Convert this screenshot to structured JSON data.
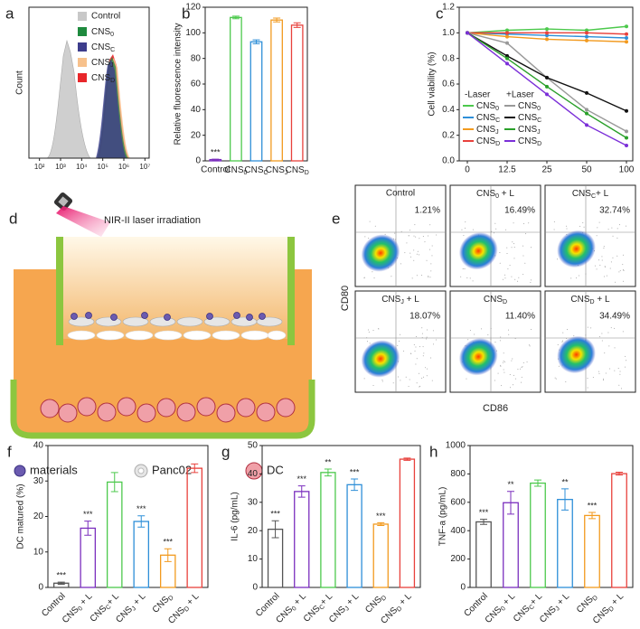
{
  "chart_data": [
    {
      "panel": "a",
      "type": "flow-histogram",
      "ylabel": "Count",
      "xlim": [
        1.5,
        7.2
      ],
      "xticks": [
        {
          "value": 2,
          "label": "10²"
        },
        {
          "value": 3,
          "label": "10³"
        },
        {
          "value": 4,
          "label": "10⁴"
        },
        {
          "value": 5,
          "label": "10⁵"
        },
        {
          "value": 6,
          "label": "10⁶"
        },
        {
          "value": 7,
          "label": "10⁷"
        }
      ],
      "series": [
        {
          "name": "Control",
          "color": "#c8c8c8"
        },
        {
          "name": "CNS0",
          "color": "#1e8a3e"
        },
        {
          "name": "CNSC",
          "color": "#3d3d8c"
        },
        {
          "name": "CNSJ",
          "color": "#f7c18c"
        },
        {
          "name": "CNSD",
          "color": "#e8262a"
        }
      ]
    },
    {
      "panel": "b",
      "type": "bar",
      "ylabel": "Relative fluorescence intensity",
      "categories": [
        "Control",
        "CNS0",
        "CNSC",
        "CNSJ",
        "CNSD"
      ],
      "values": [
        1,
        112,
        93,
        110,
        106
      ],
      "errors": [
        0.3,
        1,
        1.5,
        1.5,
        1.8
      ],
      "annotations": [
        "***",
        null,
        null,
        null,
        null
      ],
      "colors": [
        "#7b2fbe",
        "#4cc94c",
        "#2e8fd8",
        "#f29a1f",
        "#e8413c"
      ],
      "ylim": [
        0,
        120
      ],
      "yticks": [
        0,
        20,
        40,
        60,
        80,
        100,
        120
      ]
    },
    {
      "panel": "c",
      "type": "line",
      "ylabel": "Cell viability (%)",
      "categories": [
        "0",
        "12.5",
        "25",
        "50",
        "100"
      ],
      "ylim": [
        0,
        1.2
      ],
      "yticks": [
        {
          "value": 0,
          "label": "0.0"
        },
        {
          "value": 0.2,
          "label": "0.2"
        },
        {
          "value": 0.4,
          "label": "0.4"
        },
        {
          "value": 0.6,
          "label": "0.6"
        },
        {
          "value": 0.8,
          "label": "0.8"
        },
        {
          "value": 1.0,
          "label": "1.0"
        },
        {
          "value": 1.2,
          "label": "1.2"
        }
      ],
      "legend_titles": [
        "-Laser",
        "+Laser"
      ],
      "series": [
        {
          "name": "CNS0",
          "color": "#4cc94c",
          "values": [
            1,
            1.02,
            1.03,
            1.02,
            1.05
          ]
        },
        {
          "name": "CNSC",
          "color": "#2e8fd8",
          "values": [
            1,
            0.99,
            0.98,
            0.97,
            0.96
          ]
        },
        {
          "name": "CNSJ",
          "color": "#f29a1f",
          "values": [
            1,
            0.97,
            0.95,
            0.94,
            0.93
          ]
        },
        {
          "name": "CNSD",
          "color": "#e8413c",
          "values": [
            1,
            1.0,
            1.0,
            1.0,
            0.99
          ]
        },
        {
          "name": "CNS0",
          "color": "#999999",
          "values": [
            1,
            0.92,
            0.65,
            0.4,
            0.23
          ]
        },
        {
          "name": "CNSC",
          "color": "#111111",
          "values": [
            1,
            0.82,
            0.65,
            0.53,
            0.39
          ]
        },
        {
          "name": "CNSJ",
          "color": "#2aa02a",
          "values": [
            1,
            0.8,
            0.58,
            0.37,
            0.18
          ]
        },
        {
          "name": "CNSD",
          "color": "#7b2fd8",
          "values": [
            1,
            0.76,
            0.52,
            0.28,
            0.12
          ]
        }
      ]
    },
    {
      "panel": "f",
      "type": "bar",
      "ylabel": "DC matured (%)",
      "categories": [
        "Control",
        "CNS0 + L",
        "CNSC+ L",
        "CNSJ + L",
        "CNSD",
        "CNSD + L"
      ],
      "values": [
        1.2,
        16.7,
        29.7,
        18.6,
        9.1,
        33.6
      ],
      "errors": [
        0.3,
        2,
        2.7,
        1.6,
        1.8,
        1.2
      ],
      "annotations": [
        "***",
        "***",
        null,
        "***",
        "***",
        null
      ],
      "colors": [
        "#555555",
        "#7b2fbe",
        "#4cc94c",
        "#2e8fd8",
        "#f29a1f",
        "#e8413c"
      ],
      "ylim": [
        0,
        40
      ],
      "yticks": [
        0,
        10,
        20,
        30,
        40
      ]
    },
    {
      "panel": "g",
      "type": "bar",
      "ylabel": "IL-6 (pg/mL)",
      "categories": [
        "Control",
        "CNS0 + L",
        "CNSC+ L",
        "CNSJ + L",
        "CNSD",
        "CNSD + L"
      ],
      "values": [
        20.5,
        33.8,
        40.5,
        36.2,
        22.3,
        45.2
      ],
      "errors": [
        3,
        2,
        1.2,
        2,
        0.5,
        0.4
      ],
      "annotations": [
        "***",
        "***",
        "**",
        "***",
        "***",
        null
      ],
      "colors": [
        "#555555",
        "#7b2fbe",
        "#4cc94c",
        "#2e8fd8",
        "#f29a1f",
        "#e8413c"
      ],
      "ylim": [
        0,
        50
      ],
      "yticks": [
        0,
        10,
        20,
        30,
        40,
        50
      ]
    },
    {
      "panel": "h",
      "type": "bar",
      "ylabel": "TNF-a (pg/mL)",
      "categories": [
        "Control",
        "CNS0 + L",
        "CNSC+ L",
        "CNSJ + L",
        "CNSD",
        "CNSD + L"
      ],
      "values": [
        462,
        597,
        735,
        620,
        507,
        802
      ],
      "errors": [
        18,
        80,
        22,
        75,
        22,
        10
      ],
      "annotations": [
        "***",
        "**",
        null,
        "**",
        "***",
        null
      ],
      "colors": [
        "#555555",
        "#7b2fbe",
        "#4cc94c",
        "#2e8fd8",
        "#f29a1f",
        "#e8413c"
      ],
      "ylim": [
        0,
        1000
      ],
      "yticks": [
        0,
        200,
        400,
        600,
        800,
        1000
      ]
    }
  ],
  "diagram": {
    "panel": "d",
    "laser_label": "NIR-II laser irradiation",
    "legend": [
      "materials",
      "Panc02",
      "DC"
    ]
  },
  "flow_plots": {
    "panel": "e",
    "ylabel": "CD80",
    "xlabel": "CD86",
    "plots": [
      {
        "title": "Control",
        "percent": "1.21%"
      },
      {
        "title": "CNS0 + L",
        "percent": "16.49%"
      },
      {
        "title": "CNSC+ L",
        "percent": "32.74%"
      },
      {
        "title": "CNSJ + L",
        "percent": "18.07%"
      },
      {
        "title": "CNSD",
        "percent": "11.40%"
      },
      {
        "title": "CNSD + L",
        "percent": "34.49%"
      }
    ]
  }
}
